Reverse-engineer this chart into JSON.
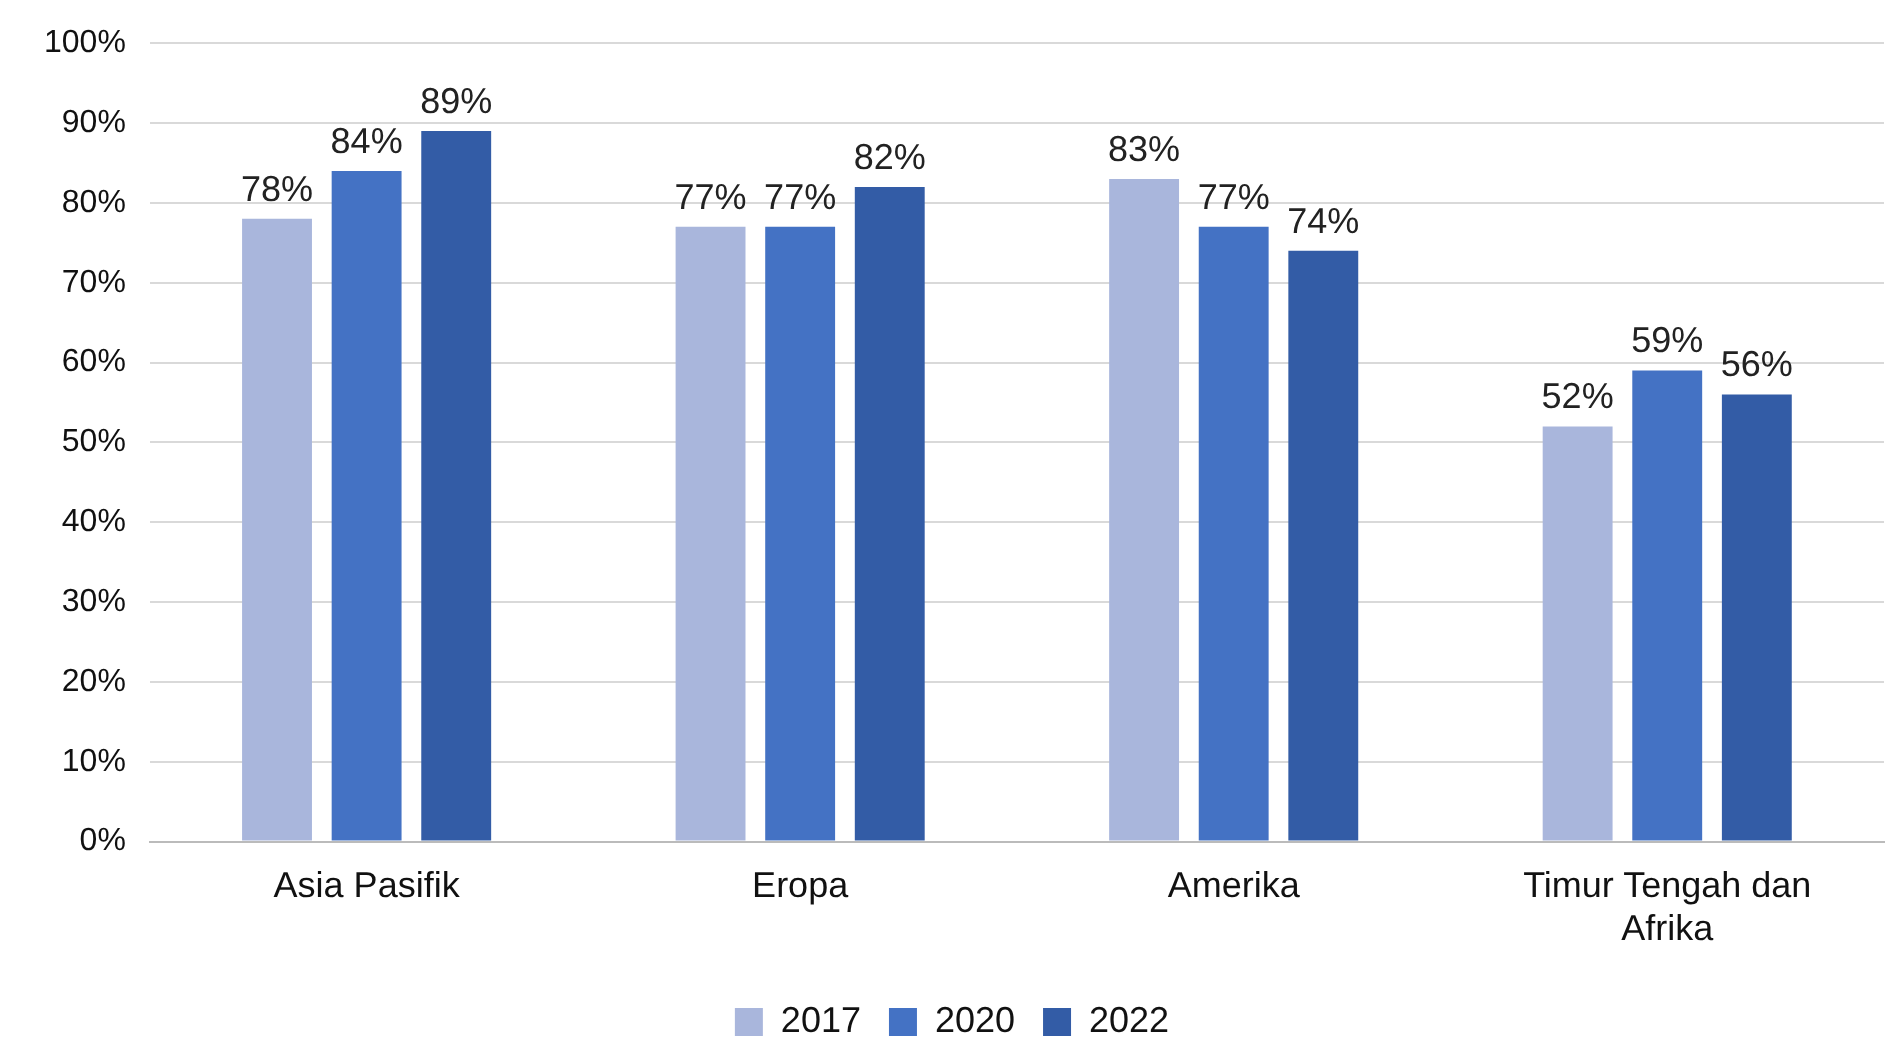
{
  "chart_data": {
    "type": "bar",
    "categories": [
      "Asia Pasifik",
      "Eropa",
      "Amerika",
      "Timur Tengah dan Afrika"
    ],
    "series": [
      {
        "name": "2017",
        "color": "#a9b6dc",
        "values": [
          78,
          77,
          83,
          52
        ],
        "value_labels": [
          "78%",
          "77%",
          "83%",
          "52%"
        ]
      },
      {
        "name": "2020",
        "color": "#4472c4",
        "values": [
          84,
          77,
          77,
          59
        ],
        "value_labels": [
          "84%",
          "77%",
          "77%",
          "59%"
        ]
      },
      {
        "name": "2022",
        "color": "#335ca6",
        "values": [
          89,
          82,
          74,
          56
        ],
        "value_labels": [
          "89%",
          "82%",
          "74%",
          "56%"
        ]
      }
    ],
    "ylim": [
      0,
      100
    ],
    "yticks": [
      {
        "value": 0,
        "label": "0%"
      },
      {
        "value": 10,
        "label": "10%"
      },
      {
        "value": 20,
        "label": "20%"
      },
      {
        "value": 30,
        "label": "30%"
      },
      {
        "value": 40,
        "label": "40%"
      },
      {
        "value": 50,
        "label": "50%"
      },
      {
        "value": 60,
        "label": "60%"
      },
      {
        "value": 70,
        "label": "70%"
      },
      {
        "value": 80,
        "label": "80%"
      },
      {
        "value": 90,
        "label": "90%"
      },
      {
        "value": 100,
        "label": "100%"
      }
    ],
    "grid": "y",
    "legend": "bottom"
  }
}
